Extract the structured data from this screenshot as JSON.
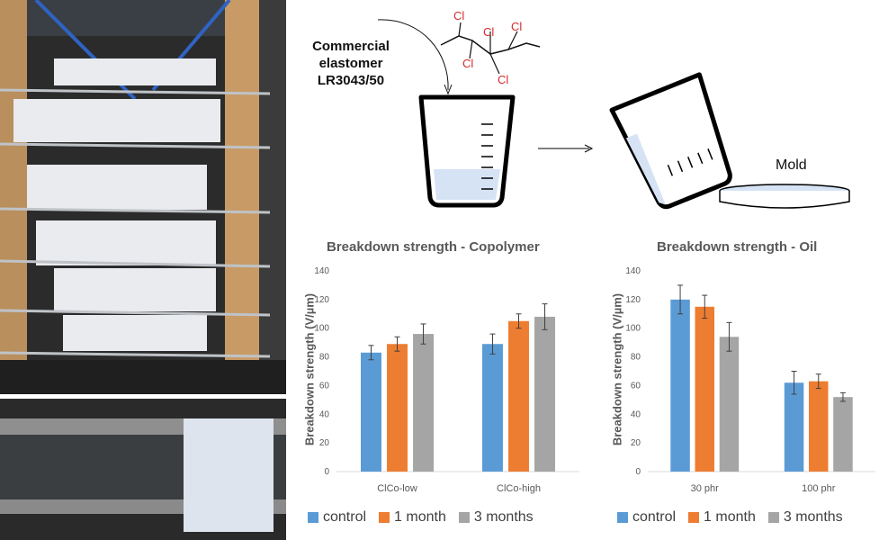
{
  "schematic": {
    "elastomer_label": [
      "Commercial",
      "elastomer",
      "LR3043/50"
    ],
    "chain_substituent": "Cl",
    "mold_label": "Mold"
  },
  "colors": {
    "control": "#5b9bd5",
    "1 month": "#ed7d31",
    "3 months": "#a5a5a5",
    "chlorine": "#d42a2a"
  },
  "chart_data": [
    {
      "type": "bar",
      "title": "Breakdown strength - Copolymer",
      "ylabel": "Breakdown strength (V/µm)",
      "ylim": [
        0,
        140
      ],
      "yticks": [
        0,
        20,
        40,
        60,
        80,
        100,
        120,
        140
      ],
      "grid": false,
      "legend": "bottom",
      "categories": [
        "ClCo-low",
        "ClCo-high"
      ],
      "series": [
        {
          "name": "control",
          "values": [
            83,
            89
          ],
          "errors": [
            5,
            7
          ]
        },
        {
          "name": "1 month",
          "values": [
            89,
            105
          ],
          "errors": [
            5,
            5
          ]
        },
        {
          "name": "3 months",
          "values": [
            96,
            108
          ],
          "errors": [
            7,
            9
          ]
        }
      ]
    },
    {
      "type": "bar",
      "title": "Breakdown strength - Oil",
      "ylabel": "Breakdown strength (V/µm)",
      "ylim": [
        0,
        140
      ],
      "yticks": [
        0,
        20,
        40,
        60,
        80,
        100,
        120,
        140
      ],
      "grid": false,
      "legend": "bottom",
      "categories": [
        "30 phr",
        "100 phr"
      ],
      "series": [
        {
          "name": "control",
          "values": [
            120,
            62
          ],
          "errors": [
            10,
            8
          ]
        },
        {
          "name": "1 month",
          "values": [
            115,
            63
          ],
          "errors": [
            8,
            5
          ]
        },
        {
          "name": "3 months",
          "values": [
            94,
            52
          ],
          "errors": [
            10,
            3
          ]
        }
      ]
    }
  ]
}
